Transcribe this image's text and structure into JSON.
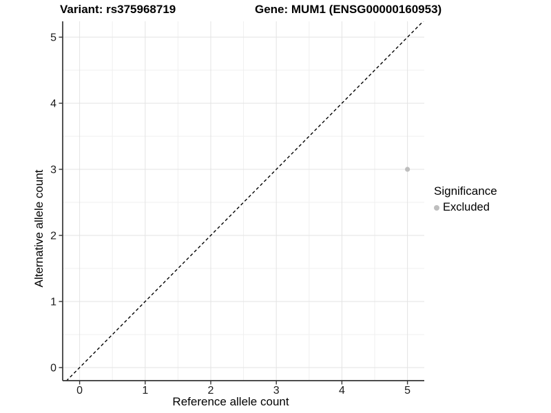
{
  "chart_data": {
    "type": "scatter",
    "title_left": "Variant: rs375968719",
    "title_right": "Gene: MUM1 (ENSG00000160953)",
    "xlabel": "Reference allele count",
    "ylabel": "Alternative allele count",
    "x_ticks": [
      0,
      1,
      2,
      3,
      4,
      5
    ],
    "y_ticks": [
      0,
      1,
      2,
      3,
      4,
      5
    ],
    "xlim": [
      -0.25,
      5.25
    ],
    "ylim": [
      -0.2,
      5.24
    ],
    "grid": "major+minor",
    "points": [
      {
        "x": 5,
        "y": 3,
        "series": "Excluded"
      }
    ],
    "reference_line": {
      "type": "identity",
      "style": "dashed"
    },
    "legend": {
      "position": "right",
      "title": "Significance",
      "items": [
        {
          "label": "Excluded",
          "color": "#bebebe"
        }
      ]
    },
    "colors": {
      "background": "#ffffff",
      "point": "#bebebe",
      "grid_major": "#e3e3e3",
      "grid_minor": "#efefef",
      "axis_line": "#333333",
      "tick_mark": "#333333",
      "reference_line": "#000000",
      "tick_label": "#1a1a1a"
    }
  }
}
